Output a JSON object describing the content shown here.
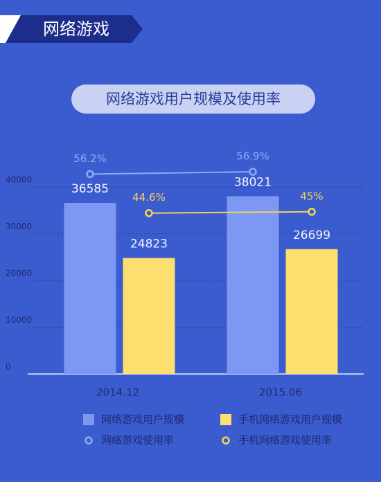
{
  "header": {
    "title": "网络游戏"
  },
  "chart_data": {
    "type": "bar-line",
    "title": "网络游戏用户规模及使用率",
    "categories": [
      "2014.12",
      "2015.06"
    ],
    "series": [
      {
        "name": "网络游戏用户规模",
        "type": "bar",
        "color": "#7c98f2",
        "values": [
          36585,
          38021
        ]
      },
      {
        "name": "手机网络游戏用户规模",
        "type": "bar",
        "color": "#fcdf6e",
        "values": [
          24823,
          26699
        ]
      },
      {
        "name": "网络游戏使用率",
        "type": "line",
        "axis": "y2",
        "color": "#8ea8f6",
        "values": [
          56.2,
          56.9
        ],
        "value_labels": [
          "56.2%",
          "56.9%"
        ]
      },
      {
        "name": "手机网络游戏使用率",
        "type": "line",
        "axis": "y2",
        "color": "#f3d458",
        "values": [
          44.6,
          45
        ],
        "value_labels": [
          "44.6%",
          "45%"
        ]
      }
    ],
    "ylim": [
      0,
      40000
    ],
    "yticks": [
      0,
      10000,
      20000,
      30000,
      40000
    ],
    "y2lim": [
      40,
      60
    ],
    "grid": true
  }
}
